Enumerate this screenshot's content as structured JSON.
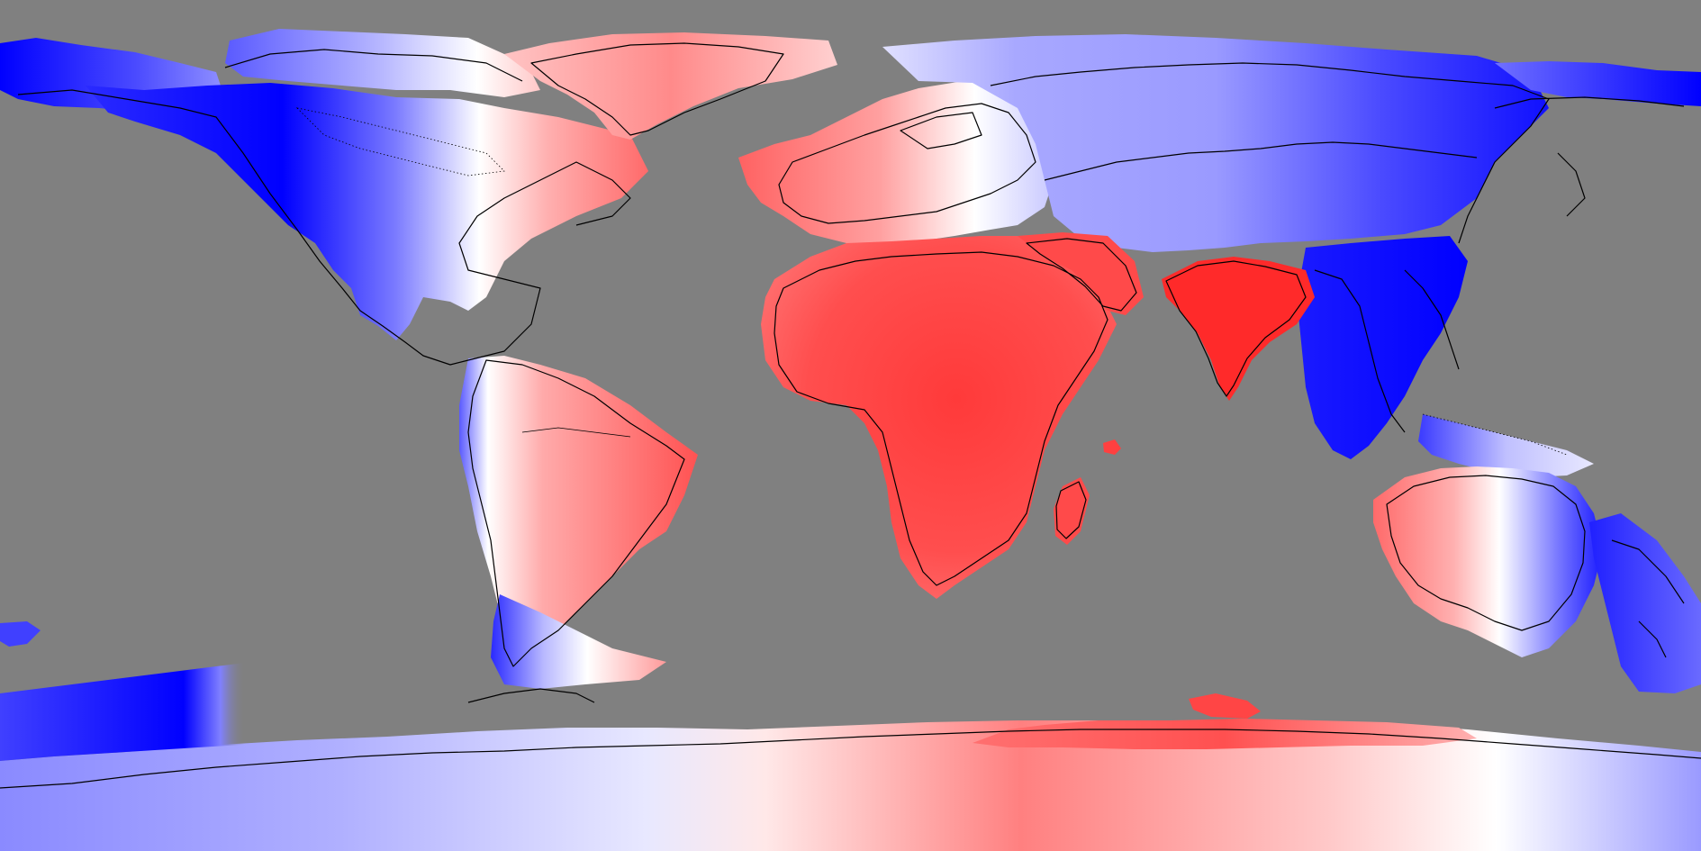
{
  "map": {
    "projection": "equirectangular",
    "background_color": "#808080",
    "coastline_color": "#000000",
    "anomaly_scale": {
      "negative_color": "#0000ff",
      "neutral_color": "#ffffff",
      "positive_color": "#ff0000"
    },
    "legend_visible": false,
    "regions": [
      {
        "name": "north-america-west",
        "sign": "negative"
      },
      {
        "name": "north-america-east",
        "sign": "positive"
      },
      {
        "name": "greenland",
        "sign": "positive"
      },
      {
        "name": "south-america-west",
        "sign": "negative"
      },
      {
        "name": "south-america-east",
        "sign": "positive"
      },
      {
        "name": "europe-west",
        "sign": "positive"
      },
      {
        "name": "africa",
        "sign": "positive"
      },
      {
        "name": "middle-east",
        "sign": "positive"
      },
      {
        "name": "india",
        "sign": "positive"
      },
      {
        "name": "siberia",
        "sign": "negative"
      },
      {
        "name": "east-asia",
        "sign": "negative"
      },
      {
        "name": "southeast-asia",
        "sign": "negative"
      },
      {
        "name": "australia-west",
        "sign": "positive"
      },
      {
        "name": "australia-east",
        "sign": "negative"
      },
      {
        "name": "new-zealand",
        "sign": "negative"
      },
      {
        "name": "antarctica-west",
        "sign": "negative"
      },
      {
        "name": "antarctica-east",
        "sign": "positive"
      }
    ]
  }
}
